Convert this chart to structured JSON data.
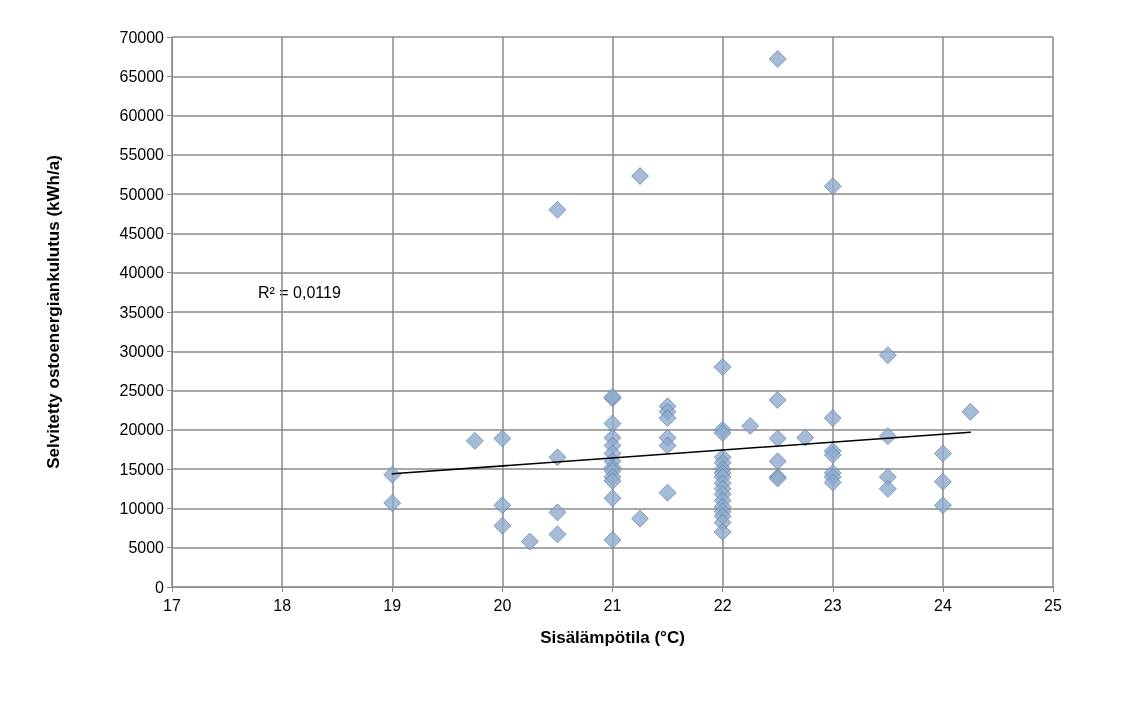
{
  "chart_data": {
    "type": "scatter",
    "xlabel": "Sisälämpötila (°C)",
    "ylabel": "Selvitetty ostoenergiankulutus (kWh/a)",
    "xlim": [
      17,
      25
    ],
    "xticks": [
      17,
      18,
      19,
      20,
      21,
      22,
      23,
      24,
      25
    ],
    "ylim": [
      0,
      70000
    ],
    "yticks": [
      0,
      5000,
      10000,
      15000,
      20000,
      25000,
      30000,
      35000,
      40000,
      45000,
      50000,
      55000,
      60000,
      65000,
      70000
    ],
    "grid": true,
    "marker": "diamond",
    "annotations": [
      "R² = 0,0119"
    ],
    "series": [
      {
        "color": "#8eaacc",
        "x": [
          19,
          19,
          19.75,
          20,
          20,
          20,
          20.25,
          20.5,
          20.5,
          20.5,
          20.5,
          21,
          21,
          21,
          21,
          21,
          21,
          21,
          21,
          21,
          21,
          21,
          21,
          21,
          21.25,
          21.25,
          21.5,
          21.5,
          21.5,
          21.5,
          21.5,
          21.5,
          22,
          22,
          22,
          22,
          22,
          22,
          22,
          22,
          22,
          22,
          22,
          22,
          22,
          22,
          22,
          22,
          22,
          22.25,
          22.5,
          22.5,
          22.5,
          22.5,
          22.5,
          22.5,
          22.75,
          23,
          23,
          23,
          23,
          23,
          23,
          23,
          23.5,
          23.5,
          23.5,
          23.5,
          24,
          24,
          24,
          24.25
        ],
        "values": [
          14300,
          10700,
          18600,
          18900,
          10400,
          7800,
          5800,
          48000,
          16500,
          9500,
          6700,
          24000,
          24200,
          20800,
          19000,
          18000,
          17000,
          16000,
          15200,
          14800,
          14000,
          13500,
          11300,
          6000,
          52300,
          8700,
          23000,
          22300,
          21500,
          19000,
          18000,
          12000,
          28000,
          20000,
          19600,
          16500,
          15800,
          15000,
          14500,
          14000,
          13200,
          12500,
          11800,
          11000,
          10200,
          9600,
          9000,
          8200,
          7000,
          20500,
          67200,
          23800,
          18900,
          16000,
          14000,
          13800,
          19000,
          51000,
          21500,
          17300,
          16800,
          14500,
          14000,
          13300,
          29500,
          19200,
          14000,
          12500,
          17000,
          13400,
          10400,
          22300
        ]
      },
      {
        "type": "line",
        "color": "#000000",
        "marker": "none",
        "x": [
          19,
          24.25
        ],
        "values": [
          14400,
          19700
        ]
      }
    ]
  }
}
